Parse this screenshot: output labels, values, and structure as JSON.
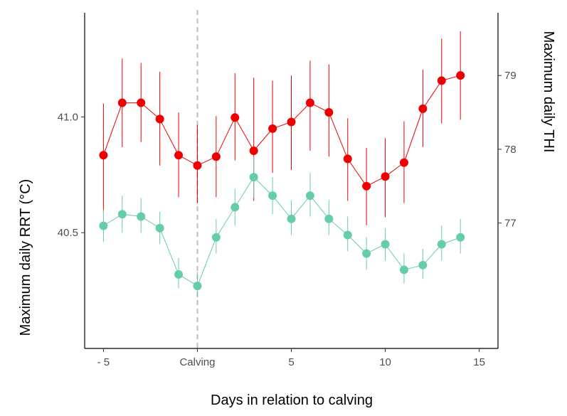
{
  "chart_data": {
    "type": "line",
    "xlabel": "Days in relation to calving",
    "ylabel_left": "Maximum daily RRT (°C)",
    "ylabel_right": "Maximum daily THI",
    "x_ticks": [
      {
        "value": -5,
        "label": "- 5"
      },
      {
        "value": 0,
        "label": "Calving"
      },
      {
        "value": 5,
        "label": "5"
      },
      {
        "value": 10,
        "label": "10"
      },
      {
        "value": 15,
        "label": "15"
      }
    ],
    "x_range": [
      -6,
      16
    ],
    "y_left_ticks": [
      40.5,
      41.0
    ],
    "y_left_range": [
      40.0,
      41.45
    ],
    "y_right_ticks": [
      77,
      78,
      79
    ],
    "y_right_range": [
      75.3,
      79.85
    ],
    "calving_line": {
      "x": 0,
      "color": "#bfbfbf",
      "style": "dashed"
    },
    "x": [
      -5,
      -4,
      -3,
      -2,
      -1,
      0,
      1,
      2,
      3,
      4,
      5,
      6,
      7,
      8,
      9,
      10,
      11,
      12,
      13,
      14
    ],
    "series": [
      {
        "axis": "right",
        "color": "#ee0000",
        "values": [
          77.92,
          78.63,
          78.63,
          78.41,
          77.92,
          77.78,
          77.9,
          78.43,
          77.98,
          78.28,
          78.37,
          78.63,
          78.5,
          77.87,
          77.5,
          77.63,
          77.82,
          78.55,
          78.93,
          79.0
        ],
        "lower": [
          77.15,
          78.03,
          78.1,
          77.78,
          77.35,
          77.27,
          77.35,
          77.85,
          77.3,
          77.68,
          77.72,
          77.98,
          77.9,
          77.3,
          76.97,
          77.08,
          77.27,
          78.03,
          78.35,
          78.4
        ],
        "upper": [
          78.62,
          79.23,
          79.17,
          79.05,
          78.5,
          78.33,
          78.45,
          79.03,
          78.97,
          78.93,
          79.0,
          79.2,
          79.15,
          78.42,
          78.02,
          78.15,
          78.38,
          79.08,
          79.5,
          79.6
        ]
      },
      {
        "axis": "left",
        "color": "#66cdaa",
        "values": [
          40.53,
          40.58,
          40.57,
          40.52,
          40.32,
          40.27,
          40.48,
          40.61,
          40.74,
          40.66,
          40.56,
          40.66,
          40.56,
          40.49,
          40.41,
          40.45,
          40.34,
          40.36,
          40.45,
          40.48
        ],
        "lower": [
          40.46,
          40.5,
          40.5,
          40.45,
          40.26,
          40.22,
          40.41,
          40.53,
          40.65,
          40.58,
          40.49,
          40.57,
          40.49,
          40.42,
          40.34,
          40.38,
          40.28,
          40.3,
          40.38,
          40.41
        ],
        "upper": [
          40.6,
          40.66,
          40.65,
          40.59,
          40.39,
          40.33,
          40.56,
          40.69,
          40.83,
          40.74,
          40.64,
          40.76,
          40.64,
          40.57,
          40.48,
          40.52,
          40.41,
          40.43,
          40.53,
          40.56
        ]
      }
    ]
  }
}
